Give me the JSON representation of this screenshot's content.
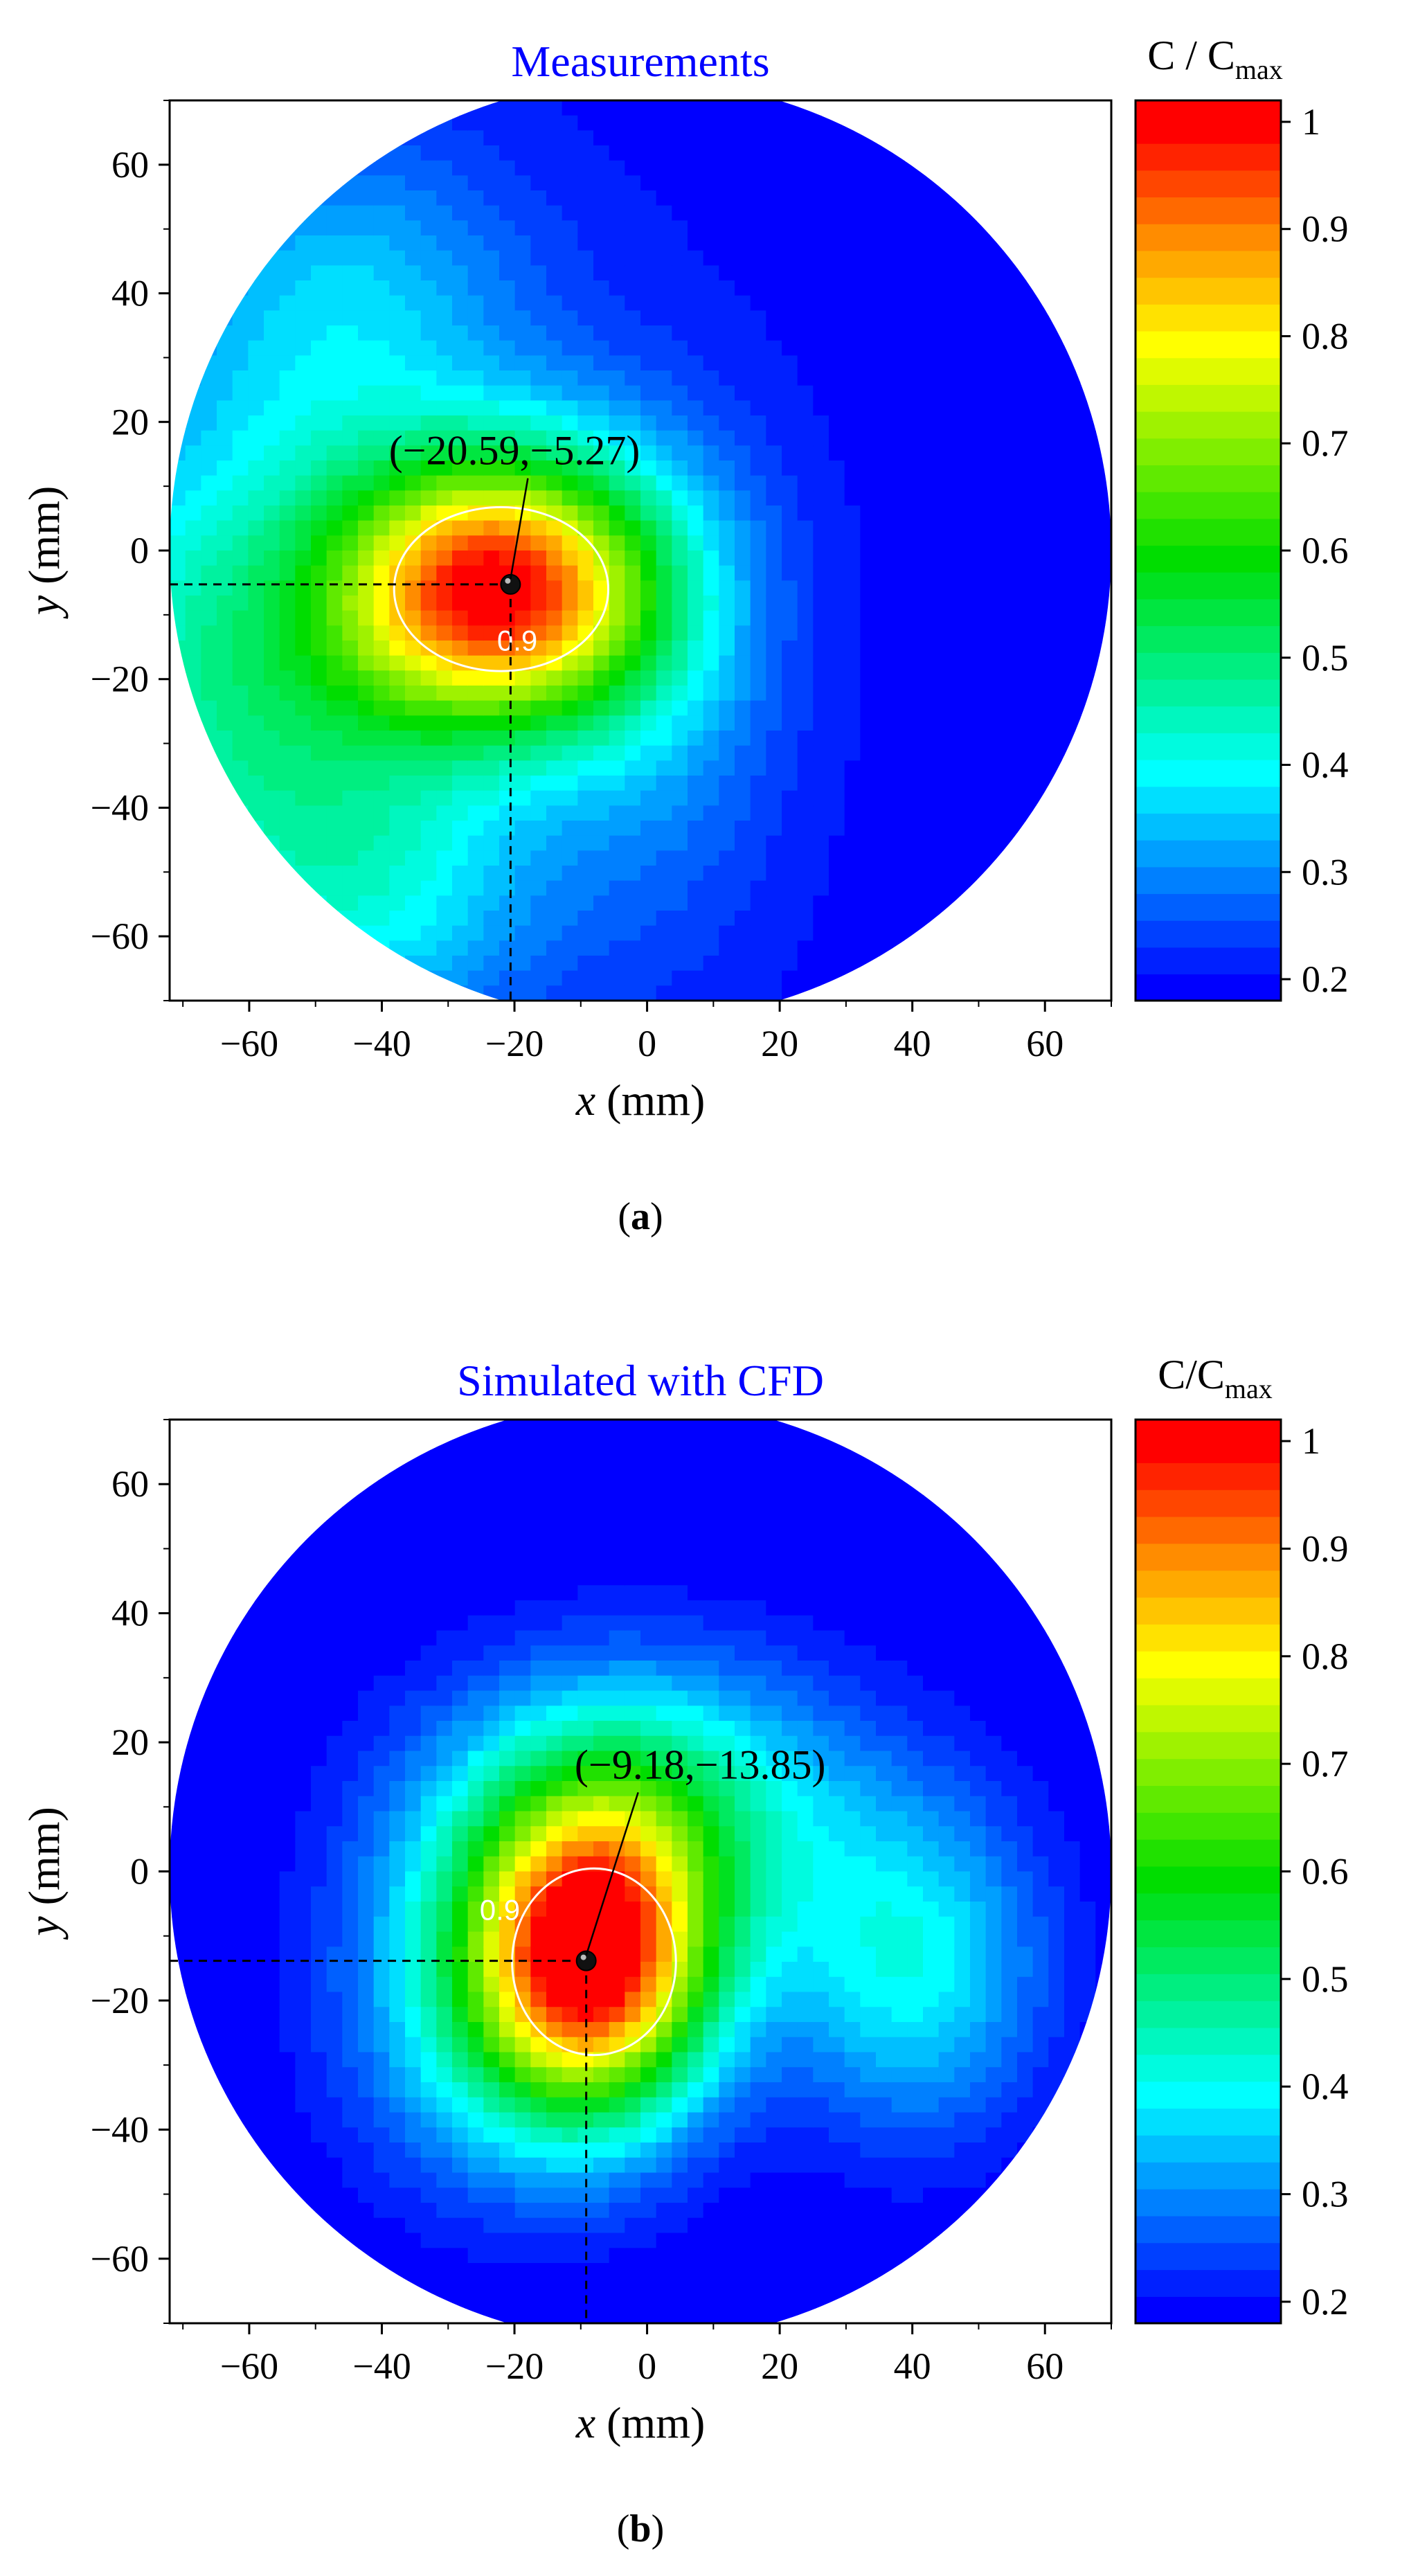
{
  "chart_data": [
    {
      "type": "heatmap",
      "title": "Measurements",
      "xlabel_var": "x",
      "xlabel_unit": " (mm)",
      "ylabel_var": "y",
      "ylabel_unit": " (mm)",
      "xlim": [
        -72,
        70
      ],
      "ylim": [
        -70,
        70
      ],
      "circle_center": [
        -1,
        0
      ],
      "circle_radius": 71,
      "xticks": [
        -60,
        -40,
        -20,
        0,
        20,
        40,
        60
      ],
      "yticks": [
        -60,
        -40,
        -20,
        0,
        20,
        40,
        60
      ],
      "xtick_labels": [
        "−60",
        "−40",
        "−20",
        "0",
        "20",
        "40",
        "60"
      ],
      "ytick_labels": [
        "−60",
        "−40",
        "−20",
        "0",
        "20",
        "40",
        "60"
      ],
      "peak": [
        -20.59,
        -5.27
      ],
      "peak_label": "(−20.59,−5.27)",
      "contour_level_label": "0.9",
      "colorbar": {
        "title_main": "C / C",
        "title_sub": "max",
        "range": [
          0.18,
          1.02
        ],
        "ticks": [
          1.0,
          0.9,
          0.8,
          0.7,
          0.6,
          0.5,
          0.4,
          0.3,
          0.2
        ],
        "tick_labels": [
          "1",
          "0.9",
          "0.8",
          "0.7",
          "0.6",
          "0.5",
          "0.4",
          "0.3",
          "0.2"
        ]
      },
      "field_sources": [
        {
          "x": -22,
          "y": -6,
          "amp": 0.72,
          "sx": 17,
          "sy": 15
        },
        {
          "x": -60,
          "y": -20,
          "amp": 0.28,
          "sx": 26,
          "sy": 30
        },
        {
          "x": -45,
          "y": 40,
          "amp": 0.14,
          "sx": 20,
          "sy": 18
        },
        {
          "x": -40,
          "y": -55,
          "amp": 0.12,
          "sx": 18,
          "sy": 15
        },
        {
          "x": 2,
          "y": -20,
          "amp": 0.1,
          "sx": 14,
          "sy": 30
        }
      ],
      "field_base": 0.2,
      "caption": "a"
    },
    {
      "type": "heatmap",
      "title": "Simulated with CFD",
      "xlabel_var": "x",
      "xlabel_unit": " (mm)",
      "ylabel_var": "y",
      "ylabel_unit": " (mm)",
      "xlim": [
        -72,
        70
      ],
      "ylim": [
        -70,
        70
      ],
      "circle_center": [
        -1,
        0
      ],
      "circle_radius": 71,
      "xticks": [
        -60,
        -40,
        -20,
        0,
        20,
        40,
        60
      ],
      "yticks": [
        -60,
        -40,
        -20,
        0,
        20,
        40,
        60
      ],
      "xtick_labels": [
        "−60",
        "−40",
        "−20",
        "0",
        "20",
        "40",
        "60"
      ],
      "ytick_labels": [
        "−60",
        "−40",
        "−20",
        "0",
        "20",
        "40",
        "60"
      ],
      "peak": [
        -9.18,
        -13.85
      ],
      "peak_label": "(−9.18,−13.85)",
      "contour_level_label": "0.9",
      "colorbar": {
        "title_main": "C/C",
        "title_sub": "max",
        "range": [
          0.18,
          1.02
        ],
        "ticks": [
          1.0,
          0.9,
          0.8,
          0.7,
          0.6,
          0.5,
          0.4,
          0.3,
          0.2
        ],
        "tick_labels": [
          "1",
          "0.9",
          "0.8",
          "0.7",
          "0.6",
          "0.5",
          "0.4",
          "0.3",
          "0.2"
        ]
      },
      "field_sources": [
        {
          "x": -8,
          "y": -14,
          "amp": 0.75,
          "sx": 13,
          "sy": 17
        },
        {
          "x": 0,
          "y": 10,
          "amp": 0.28,
          "sx": 22,
          "sy": 16
        },
        {
          "x": 40,
          "y": -15,
          "amp": 0.22,
          "sx": 14,
          "sy": 18
        },
        {
          "x": -25,
          "y": -20,
          "amp": 0.18,
          "sx": 16,
          "sy": 20
        }
      ],
      "field_base": 0.18,
      "caption": "b"
    }
  ],
  "colormap": [
    {
      "v": 0.2,
      "c": "#0000ff"
    },
    {
      "v": 0.4,
      "c": "#00ffff"
    },
    {
      "v": 0.6,
      "c": "#00dd00"
    },
    {
      "v": 0.8,
      "c": "#ffff00"
    },
    {
      "v": 0.9,
      "c": "#ff8c00"
    },
    {
      "v": 1.0,
      "c": "#ff0000"
    }
  ],
  "colors": {
    "title": "#0000ff",
    "axis": "#000000",
    "contour_line": "#ffffff",
    "outside": "#ffffff"
  }
}
